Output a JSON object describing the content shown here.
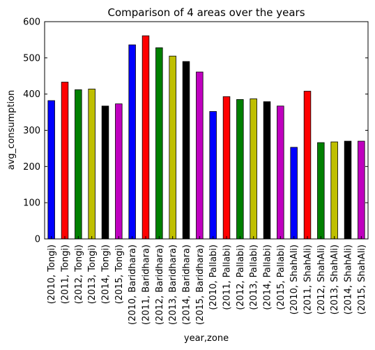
{
  "chart_data": {
    "type": "bar",
    "title": "Comparison of 4 areas over the years",
    "xlabel": "year,zone",
    "ylabel": "avg_consumption",
    "ylim": [
      0,
      600
    ],
    "yticks": [
      0,
      100,
      200,
      300,
      400,
      500,
      600
    ],
    "grid": false,
    "legend": "none",
    "categories": [
      "(2010, Tongi)",
      "(2011, Tongi)",
      "(2012, Tongi)",
      "(2013, Tongi)",
      "(2014, Tongi)",
      "(2015, Tongi)",
      "(2010, Baridhara)",
      "(2011, Baridhara)",
      "(2012, Baridhara)",
      "(2013, Baridhara)",
      "(2014, Baridhara)",
      "(2015, Baridhara)",
      "(2010, Pallabi)",
      "(2011, Pallabi)",
      "(2012, Pallabi)",
      "(2013, Pallabi)",
      "(2014, Pallabi)",
      "(2015, Pallabi)",
      "(2010, ShahAli)",
      "(2011, ShahAli)",
      "(2012, ShahAli)",
      "(2013, ShahAli)",
      "(2014, ShahAli)",
      "(2015, ShahAli)"
    ],
    "values": [
      382,
      433,
      412,
      414,
      367,
      373,
      536,
      561,
      528,
      505,
      490,
      461,
      352,
      393,
      385,
      387,
      379,
      367,
      253,
      408,
      266,
      268,
      270,
      270
    ],
    "bar_colors": [
      "#0000ff",
      "#ff0000",
      "#008000",
      "#bfbf00",
      "#000000",
      "#bf00bf"
    ]
  }
}
